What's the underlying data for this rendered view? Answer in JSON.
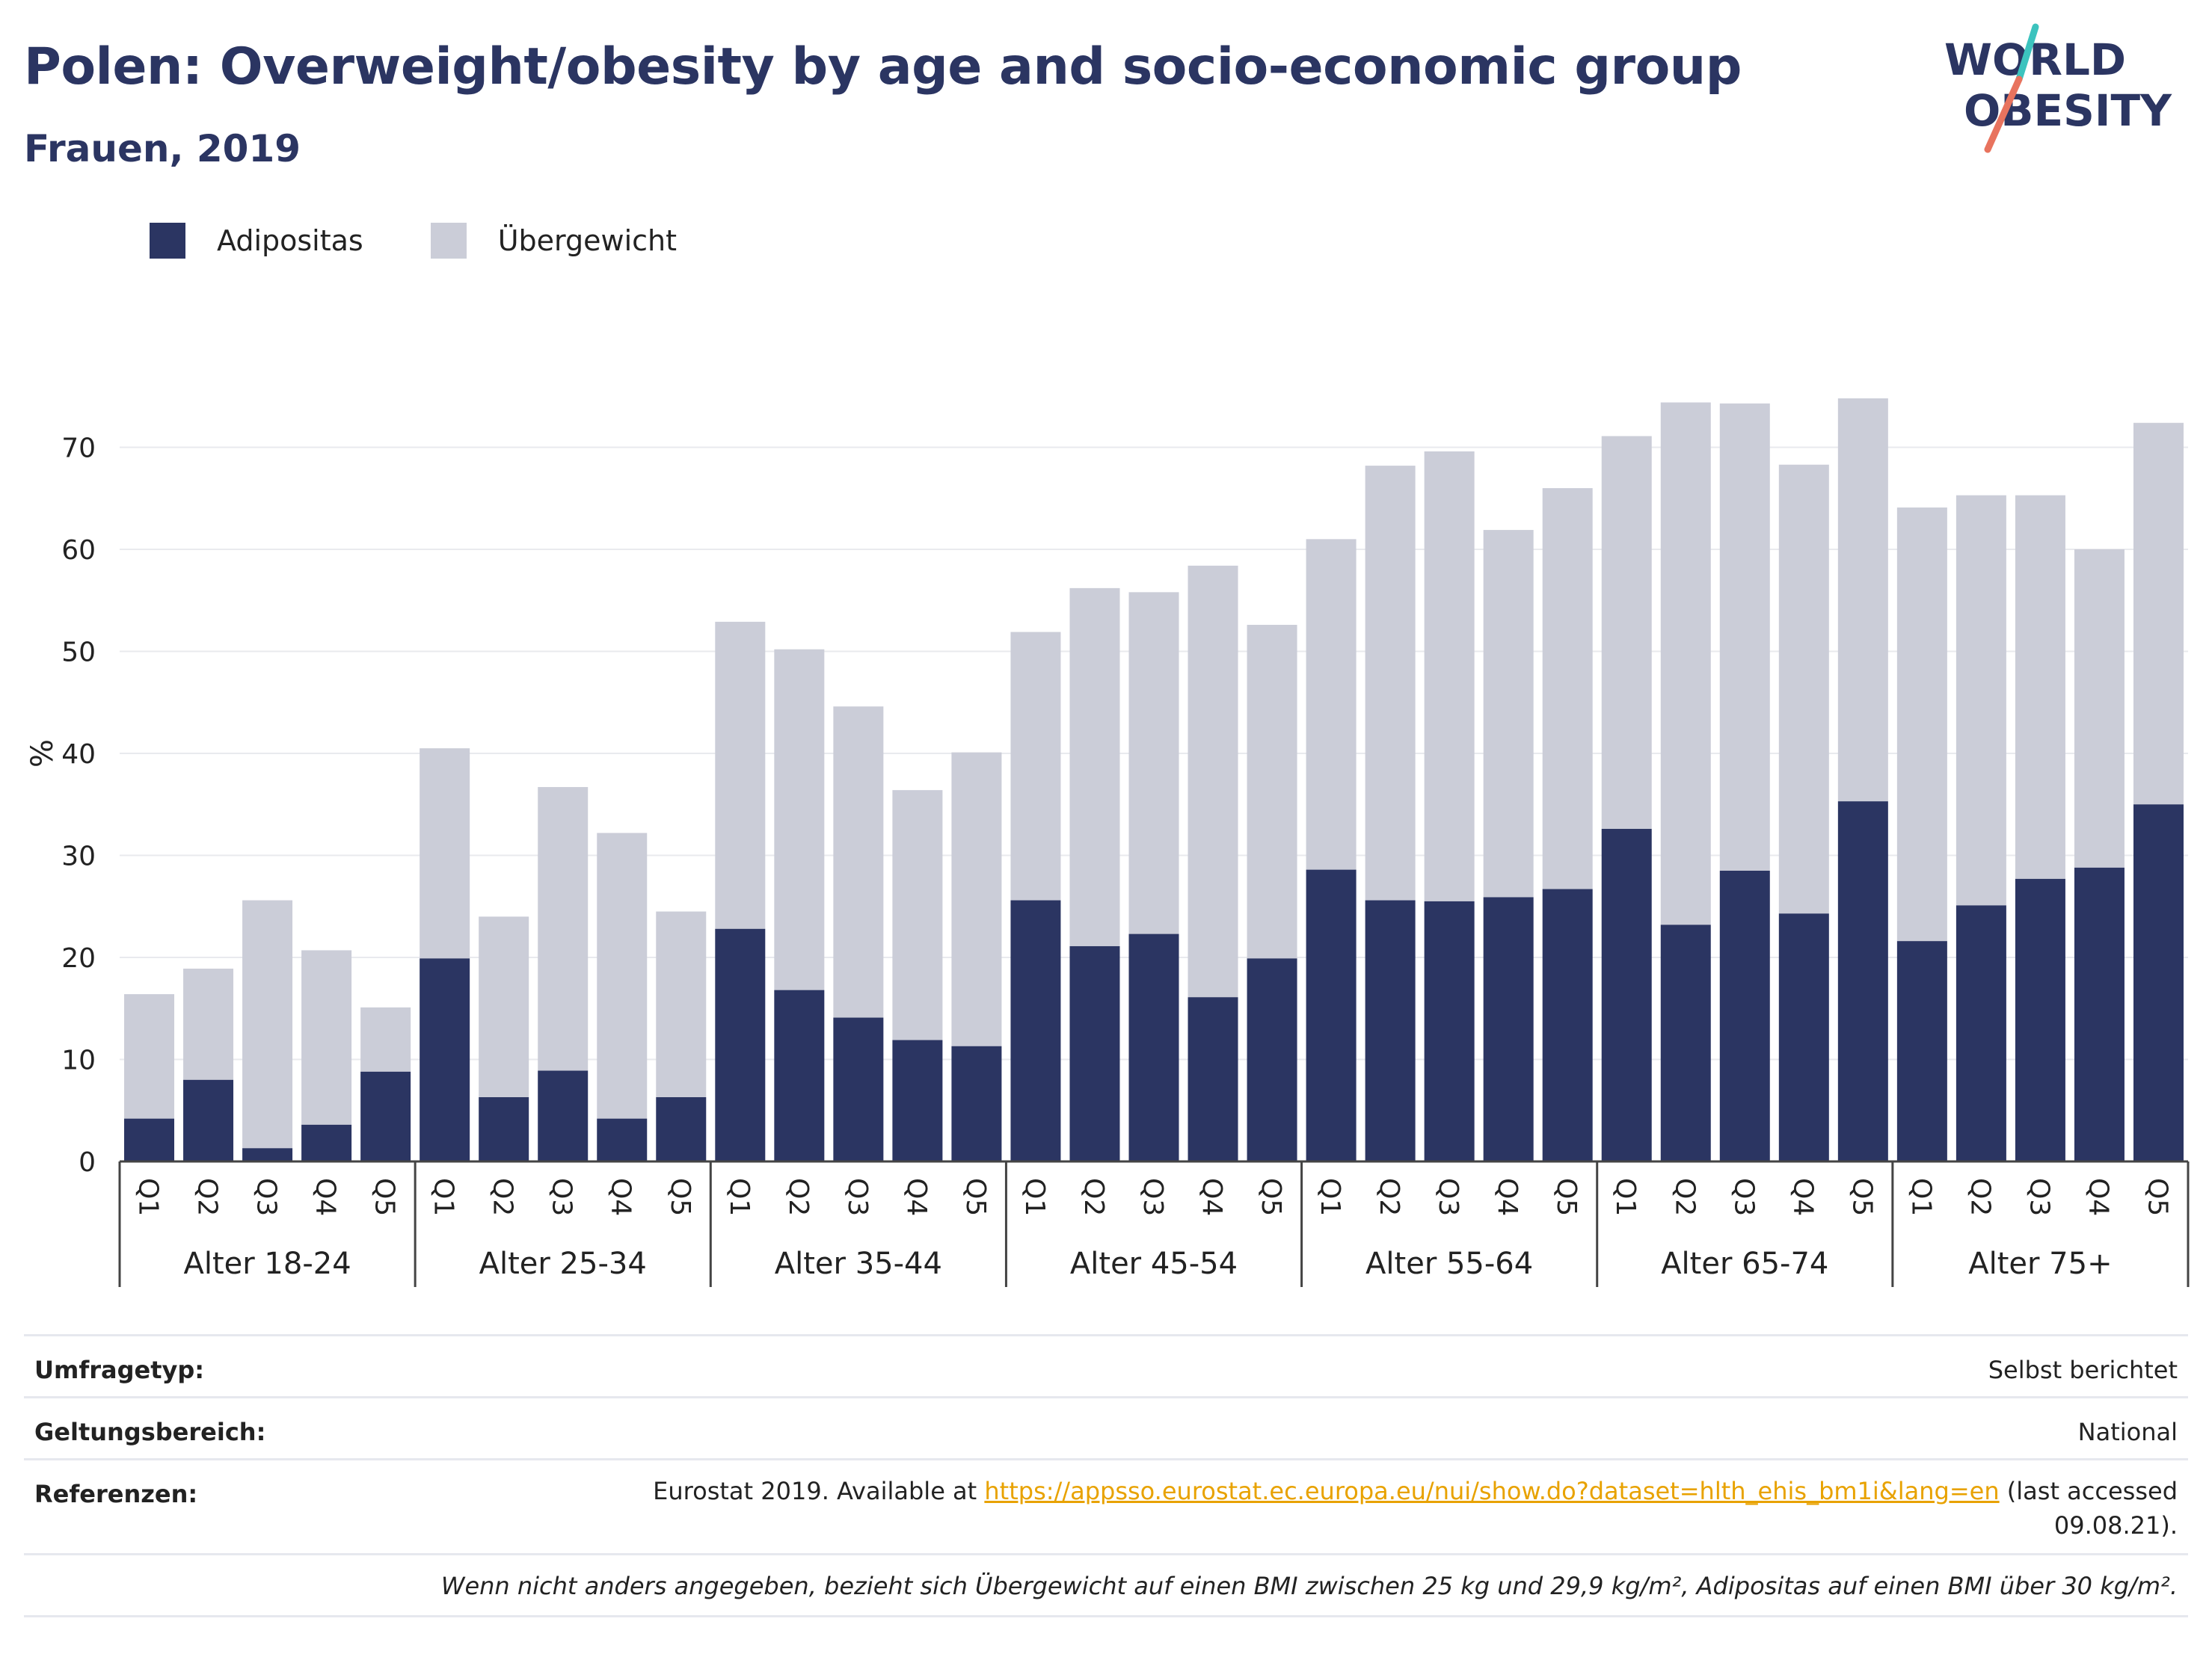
{
  "header": {
    "title": "Polen: Overweight/obesity by age and socio-economic group",
    "subtitle": "Frauen, 2019"
  },
  "logo": {
    "line1": "WORLD",
    "line2": "OBESITY",
    "slash_colors": [
      "#3cc3be",
      "#e8735e"
    ]
  },
  "legend": [
    {
      "label": "Adipositas",
      "color": "#2b3562"
    },
    {
      "label": "Übergewicht",
      "color": "#cbcdd8"
    }
  ],
  "chart_data": {
    "type": "bar",
    "stacked": true,
    "ylabel": "%",
    "ylim": [
      0,
      80
    ],
    "yticks": [
      0,
      10,
      20,
      30,
      40,
      50,
      60,
      70
    ],
    "grid": true,
    "legend_position": "top-left",
    "groups": [
      "Alter 18-24",
      "Alter 25-34",
      "Alter 35-44",
      "Alter 45-54",
      "Alter 55-64",
      "Alter 65-74",
      "Alter 75+"
    ],
    "subcategories": [
      "Q1",
      "Q2",
      "Q3",
      "Q4",
      "Q5"
    ],
    "series": [
      {
        "name": "Adipositas",
        "color": "#2b3562",
        "values": [
          4.2,
          8.0,
          1.3,
          3.6,
          8.8,
          19.9,
          6.3,
          8.9,
          4.2,
          6.3,
          22.8,
          16.8,
          14.1,
          11.9,
          11.3,
          25.6,
          21.1,
          22.3,
          16.1,
          19.9,
          28.6,
          25.6,
          25.5,
          25.9,
          26.7,
          32.6,
          23.2,
          28.5,
          24.3,
          35.3,
          21.6,
          25.1,
          27.7,
          28.8,
          35.0
        ]
      },
      {
        "name": "Übergewicht",
        "color": "#cbcdd8",
        "values": [
          12.2,
          10.9,
          24.3,
          17.1,
          6.3,
          20.6,
          17.7,
          27.8,
          28.0,
          18.2,
          30.1,
          33.4,
          30.5,
          24.5,
          28.8,
          26.3,
          35.1,
          33.5,
          42.3,
          32.7,
          32.4,
          42.6,
          44.1,
          36.0,
          39.3,
          38.5,
          51.2,
          45.8,
          44.0,
          39.5,
          42.5,
          40.2,
          37.6,
          31.2,
          37.4
        ]
      }
    ]
  },
  "footer": {
    "survey_type_label": "Umfragetyp:",
    "survey_type_value": "Selbst berichtet",
    "scope_label": "Geltungsbereich:",
    "scope_value": "National",
    "references_label": "Referenzen:",
    "references_prefix": "Eurostat 2019. Available at ",
    "references_link": "https://appsso.eurostat.ec.europa.eu/nui/show.do?dataset=hlth_ehis_bm1i&lang=en",
    "references_suffix": " (last accessed",
    "references_date": "09.08.21).",
    "note": "Wenn nicht anders angegeben, bezieht sich Übergewicht auf einen BMI zwischen 25 kg und 29,9 kg/m², Adipositas auf einen BMI über 30 kg/m²."
  }
}
